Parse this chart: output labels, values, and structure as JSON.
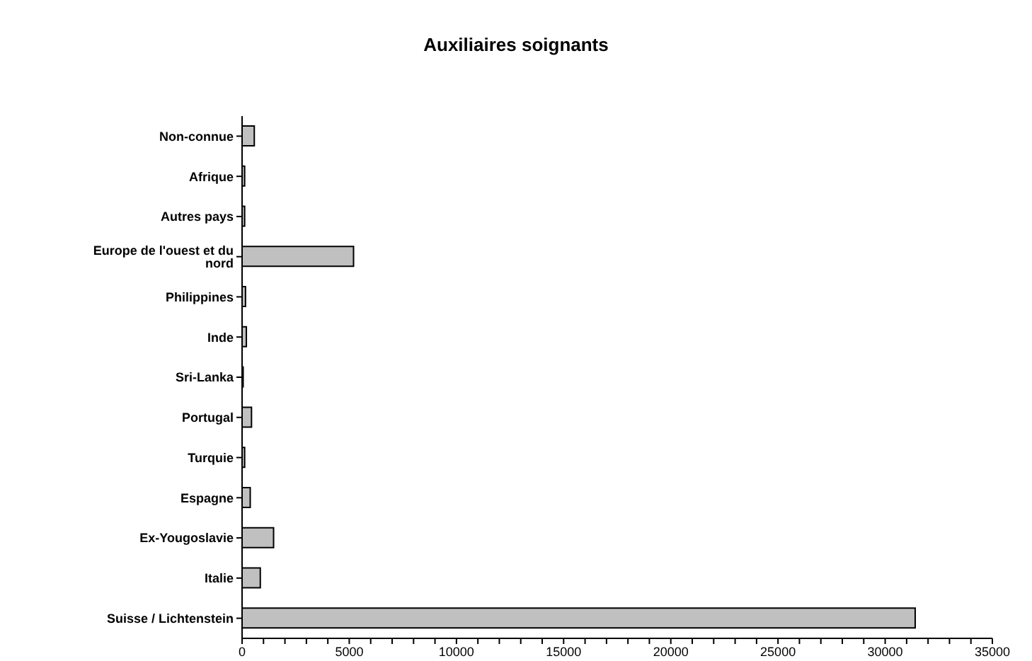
{
  "chart_data": {
    "type": "bar",
    "orientation": "horizontal",
    "title": "Auxiliaires soignants",
    "categories": [
      "Non-connue",
      "Afrique",
      "Autres pays",
      "Europe de l'ouest et du nord",
      "Philippines",
      "Inde",
      "Sri-Lanka",
      "Portugal",
      "Turquie",
      "Espagne",
      "Ex-Yougoslavie",
      "Italie",
      "Suisse / Lichtenstein"
    ],
    "values": [
      570,
      120,
      120,
      5200,
      160,
      200,
      50,
      440,
      120,
      380,
      1470,
      850,
      31400
    ],
    "color": "#c0c0c0",
    "xlim": [
      0,
      35000
    ],
    "xticks": [
      0,
      {
        "value": 1000,
        "label": null
      },
      {
        "value": 2000,
        "label": null
      },
      {
        "value": 3000,
        "label": null
      },
      {
        "value": 4000,
        "label": null
      },
      5000,
      {
        "value": 6000,
        "label": null
      },
      {
        "value": 7000,
        "label": null
      },
      {
        "value": 8000,
        "label": null
      },
      {
        "value": 9000,
        "label": null
      },
      10000,
      {
        "value": 11000,
        "label": null
      },
      {
        "value": 12000,
        "label": null
      },
      {
        "value": 13000,
        "label": null
      },
      {
        "value": 14000,
        "label": null
      },
      15000,
      {
        "value": 16000,
        "label": null
      },
      {
        "value": 17000,
        "label": null
      },
      {
        "value": 18000,
        "label": null
      },
      {
        "value": 19000,
        "label": null
      },
      20000,
      {
        "value": 21000,
        "label": null
      },
      {
        "value": 22000,
        "label": null
      },
      {
        "value": 23000,
        "label": null
      },
      {
        "value": 24000,
        "label": null
      },
      25000,
      {
        "value": 26000,
        "label": null
      },
      {
        "value": 27000,
        "label": null
      },
      {
        "value": 28000,
        "label": null
      },
      {
        "value": 29000,
        "label": null
      },
      30000,
      {
        "value": 31000,
        "label": null
      },
      {
        "value": 32000,
        "label": null
      },
      {
        "value": 33000,
        "label": null
      },
      {
        "value": 34000,
        "label": null
      },
      35000
    ],
    "grid": false,
    "legend": false
  }
}
